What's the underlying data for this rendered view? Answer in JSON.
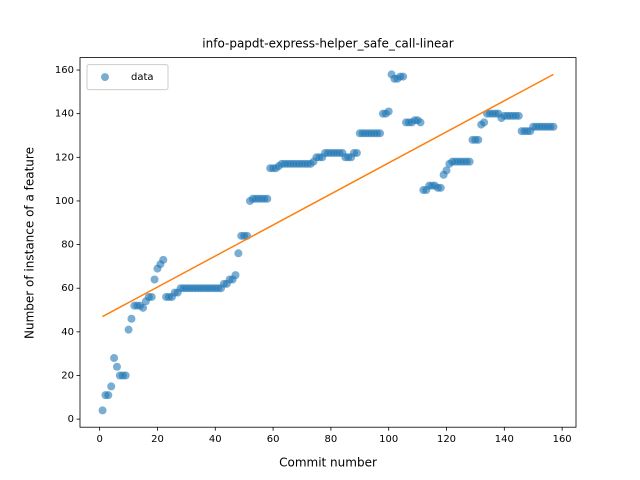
{
  "chart_data": {
    "type": "scatter",
    "title": "info-papdt-express-helper_safe_call-linear",
    "xlabel": "Commit number",
    "ylabel": "Number of instance of a feature",
    "xlim": [
      -6.8,
      164.8
    ],
    "ylim": [
      -3.7,
      165.7
    ],
    "xticks": [
      0,
      20,
      40,
      60,
      80,
      100,
      120,
      140,
      160
    ],
    "yticks": [
      0,
      20,
      40,
      60,
      80,
      100,
      120,
      140,
      160
    ],
    "legend": "upper left",
    "series": [
      {
        "name": "data",
        "color": "#1f77b4",
        "x": [
          1,
          2,
          3,
          4,
          5,
          6,
          7,
          8,
          9,
          10,
          11,
          12,
          13,
          14,
          15,
          16,
          17,
          18,
          19,
          20,
          21,
          22,
          23,
          24,
          25,
          26,
          27,
          28,
          29,
          30,
          31,
          32,
          33,
          34,
          35,
          36,
          37,
          38,
          39,
          40,
          41,
          42,
          43,
          44,
          45,
          46,
          47,
          48,
          49,
          50,
          51,
          52,
          53,
          54,
          55,
          56,
          57,
          58,
          59,
          60,
          61,
          62,
          63,
          64,
          65,
          66,
          67,
          68,
          69,
          70,
          71,
          72,
          73,
          74,
          75,
          76,
          77,
          78,
          79,
          80,
          81,
          82,
          83,
          84,
          85,
          86,
          87,
          88,
          89,
          90,
          91,
          92,
          93,
          94,
          95,
          96,
          97,
          98,
          99,
          100,
          101,
          102,
          103,
          104,
          105,
          106,
          107,
          108,
          109,
          110,
          111,
          112,
          113,
          114,
          115,
          116,
          117,
          118,
          119,
          120,
          121,
          122,
          123,
          124,
          125,
          126,
          127,
          128,
          129,
          130,
          131,
          132,
          133,
          134,
          135,
          136,
          137,
          138,
          139,
          140,
          141,
          142,
          143,
          144,
          145,
          146,
          147,
          148,
          149,
          150,
          151,
          152,
          153,
          154,
          155,
          156,
          157
        ],
        "values": [
          4,
          11,
          11,
          15,
          28,
          24,
          20,
          20,
          20,
          41,
          46,
          52,
          52,
          52,
          51,
          54,
          56,
          56,
          64,
          69,
          71,
          73,
          56,
          56,
          56,
          58,
          58,
          60,
          60,
          60,
          60,
          60,
          60,
          60,
          60,
          60,
          60,
          60,
          60,
          60,
          60,
          60,
          62,
          62,
          64,
          64,
          66,
          76,
          84,
          84,
          84,
          100,
          101,
          101,
          101,
          101,
          101,
          101,
          115,
          115,
          115,
          116,
          117,
          117,
          117,
          117,
          117,
          117,
          117,
          117,
          117,
          117,
          117,
          118,
          120,
          120,
          120,
          122,
          122,
          122,
          122,
          122,
          122,
          122,
          120,
          120,
          120,
          122,
          122,
          131,
          131,
          131,
          131,
          131,
          131,
          131,
          131,
          140,
          140,
          141,
          158,
          156,
          156,
          157,
          157,
          136,
          136,
          136,
          137,
          137,
          136,
          105,
          105,
          107,
          107,
          107,
          106,
          106,
          112,
          114,
          117,
          118,
          118,
          118,
          118,
          118,
          118,
          118,
          128,
          128,
          128,
          135,
          136,
          140,
          140,
          140,
          140,
          140,
          138,
          139,
          139,
          139,
          139,
          139,
          139,
          132,
          132,
          132,
          132,
          134,
          134,
          134,
          134,
          134,
          134,
          134,
          134
        ]
      }
    ],
    "fit": {
      "color": "#ff7f0e",
      "x": [
        1,
        157
      ],
      "values": [
        47,
        158
      ]
    }
  }
}
